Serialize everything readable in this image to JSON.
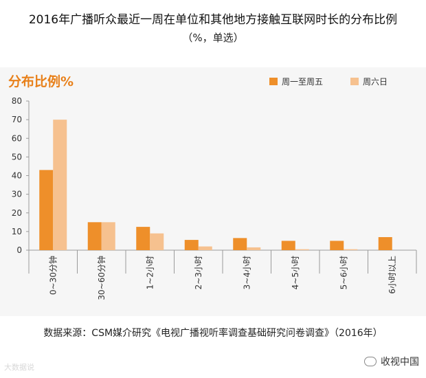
{
  "header": {
    "title": "2016年广播听众最近一周在单位和其他地方接触互联网时长的分布比例",
    "subtitle": "（%，单选）"
  },
  "chart_header": "分布比例%",
  "legend": [
    "周一至周五",
    "周六日"
  ],
  "source": "数据来源：CSM媒介研究《电视广播视听率调查基础研究问卷调查》（2016年）",
  "watermark_left": "大数据说",
  "watermark_right": "收视中国",
  "colors": {
    "weekday": "#ee8f2a",
    "weekend": "#f6c18f",
    "accent": "#e8801a"
  },
  "chart_data": {
    "type": "bar",
    "title": "2016年广播听众最近一周在单位和其他地方接触互联网时长的分布比例",
    "ylabel": "分布比例%",
    "ylim": [
      0,
      80
    ],
    "yticks": [
      0,
      10,
      20,
      30,
      40,
      50,
      60,
      70,
      80
    ],
    "categories": [
      "0~30分钟",
      "30~60分钟",
      "1~2小时",
      "2~3小时",
      "3~4小时",
      "4~5小时",
      "5~6小时",
      "6小时以上"
    ],
    "series": [
      {
        "name": "周一至周五",
        "values": [
          43,
          15,
          12.5,
          5.5,
          6.5,
          5,
          5,
          7
        ]
      },
      {
        "name": "周六日",
        "values": [
          70,
          15,
          9,
          2,
          1.5,
          0.5,
          0.5,
          0
        ]
      }
    ],
    "grid": false,
    "legend_position": "top-right"
  }
}
